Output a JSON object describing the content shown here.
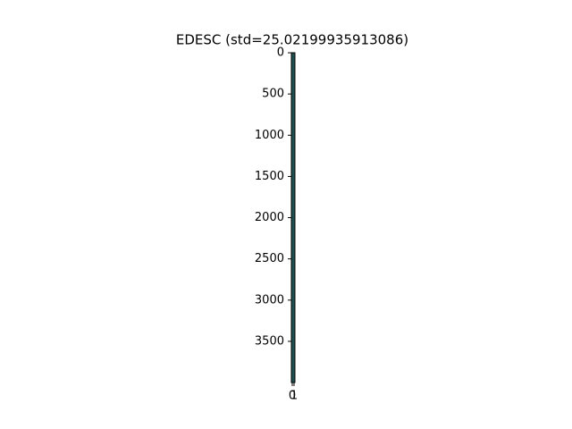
{
  "chart_data": {
    "type": "image",
    "title": "EDESC (std=25.02199935913086)",
    "cmap_color": "#1f4f4f",
    "xlim": [
      -0.5,
      1.5
    ],
    "xticks": [
      0,
      1
    ],
    "ylim": [
      3999.5,
      -0.5
    ],
    "yticks": [
      0,
      500,
      1000,
      1500,
      2000,
      2500,
      3000,
      3500
    ]
  }
}
